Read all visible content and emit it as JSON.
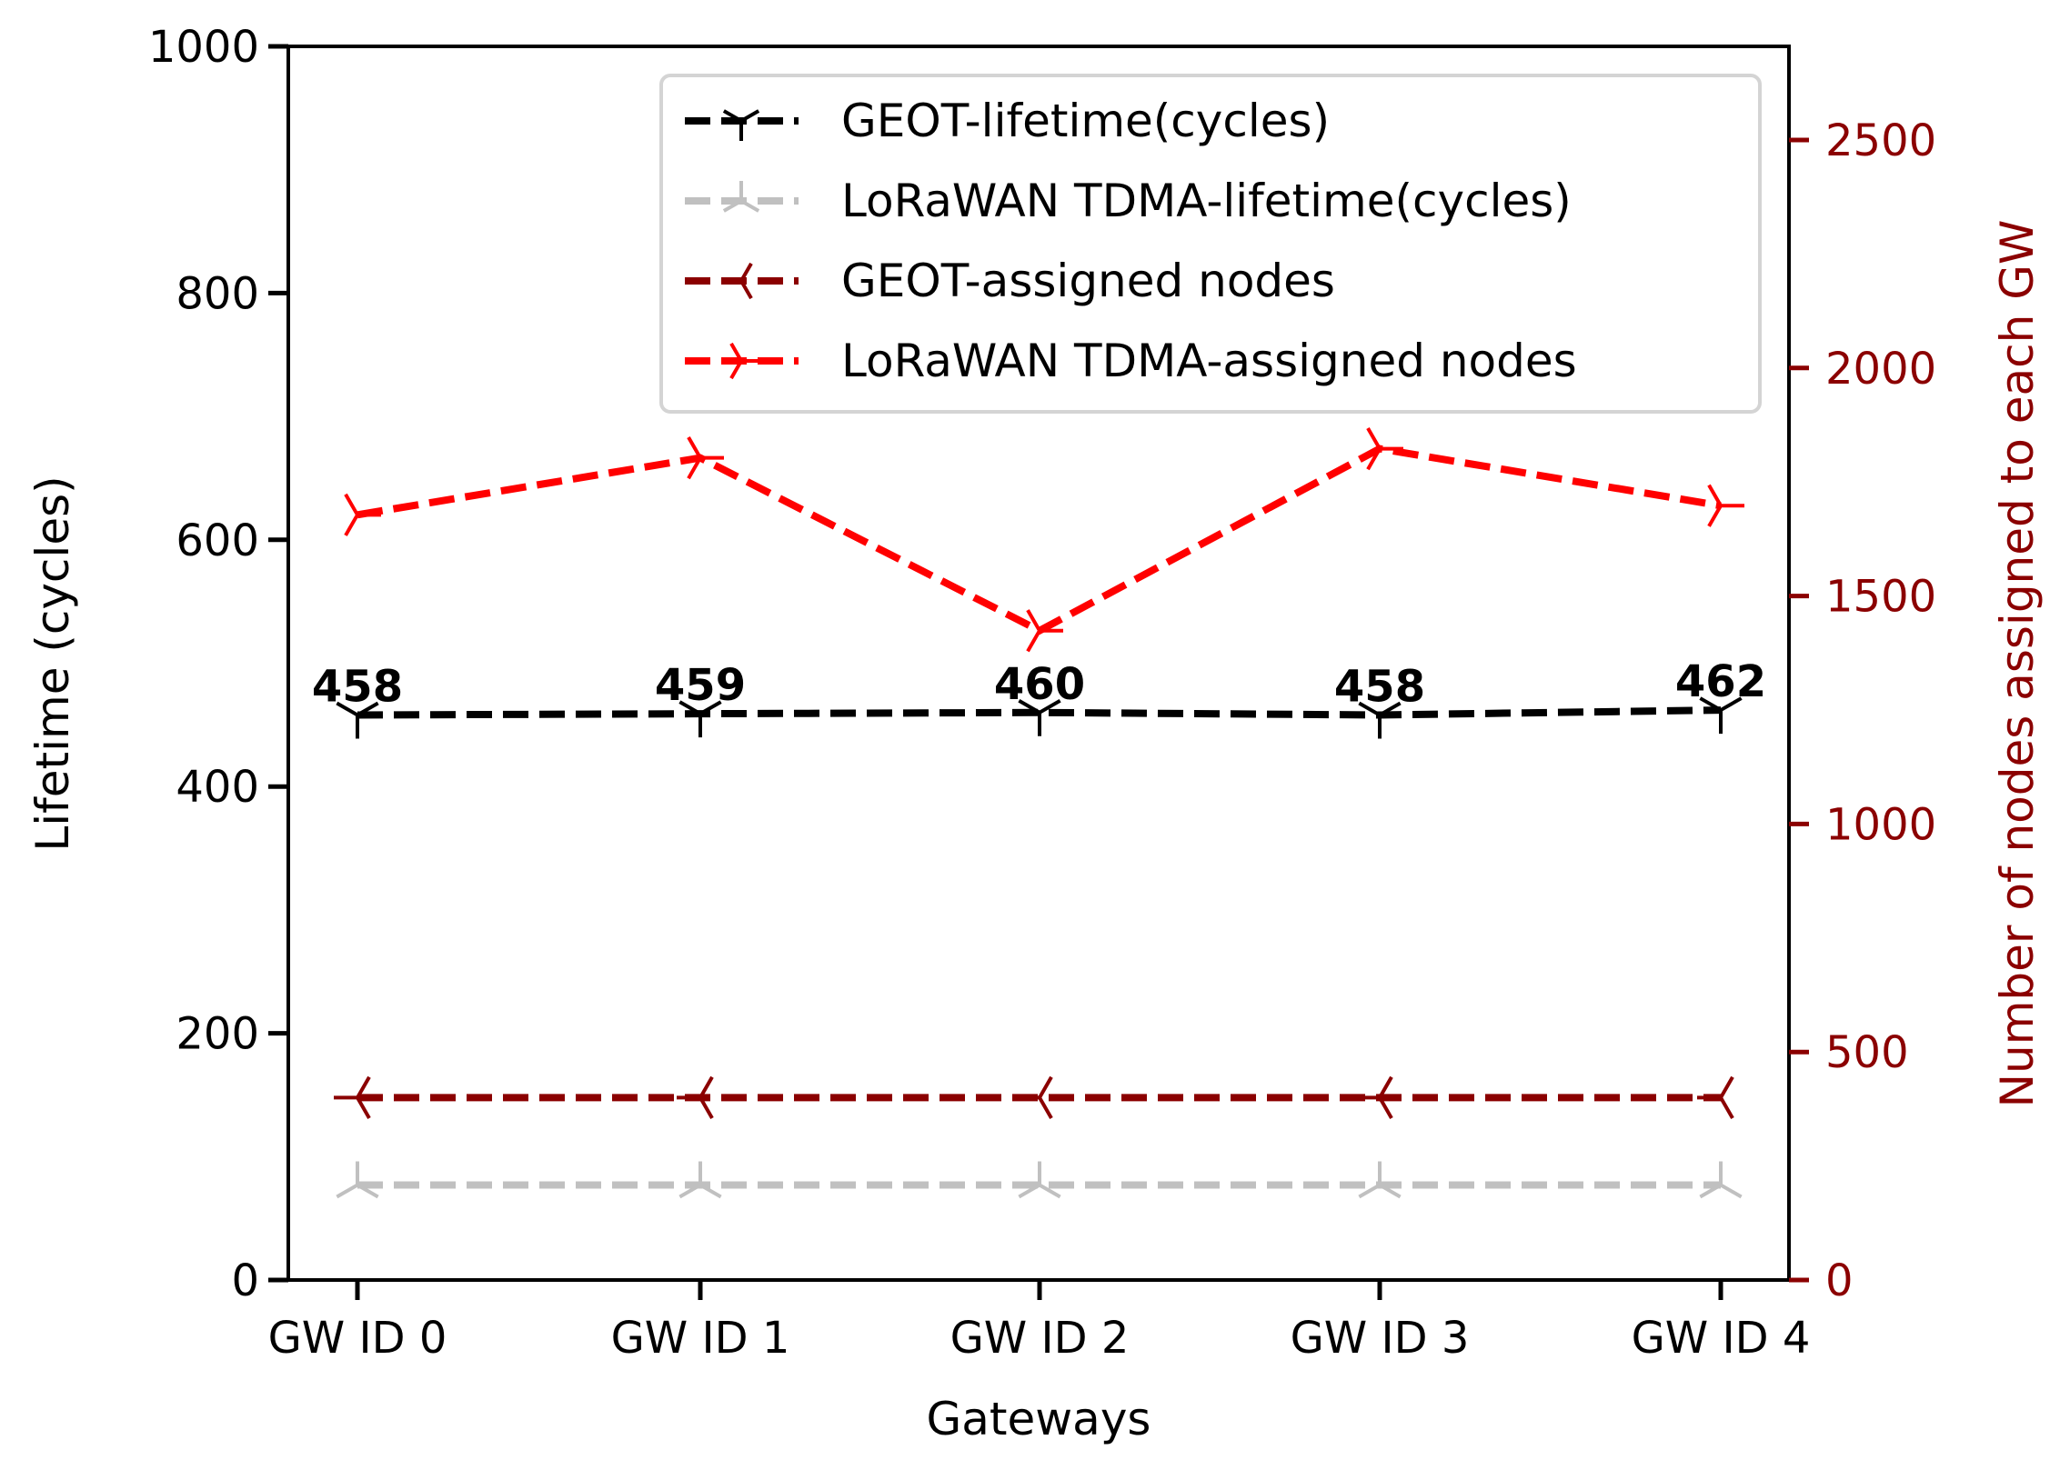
{
  "chart_data": {
    "type": "line",
    "categories": [
      "GW ID 0",
      "GW ID 1",
      "GW ID 2",
      "GW ID 3",
      "GW ID 4"
    ],
    "xlabel": "Gateways",
    "ylabel": "Lifetime (cycles)",
    "ylabel_right": "Number of nodes assigned to each GW",
    "ylim": [
      0,
      1000
    ],
    "ylim_right": [
      0,
      2700
    ],
    "yticks": [
      0,
      200,
      400,
      600,
      800,
      1000
    ],
    "yticks_right": [
      0,
      500,
      1000,
      1500,
      2000,
      2500
    ],
    "grid": false,
    "legend_position": "top-right",
    "series": [
      {
        "name": "GEOT-lifetime(cycles)",
        "axis": "left",
        "color": "#000000",
        "marker": "tri_down",
        "values": [
          458,
          459,
          460,
          458,
          462
        ],
        "labels": [
          "458",
          "459",
          "460",
          "458",
          "462"
        ]
      },
      {
        "name": "LoRaWAN TDMA-lifetime(cycles)",
        "axis": "left",
        "color": "#c0c0c0",
        "marker": "tri_up",
        "values": [
          77,
          77,
          77,
          77,
          77
        ]
      },
      {
        "name": "GEOT-assigned nodes",
        "axis": "right",
        "color": "#8b0000",
        "marker": "tri_left",
        "values": [
          400,
          400,
          400,
          400,
          400
        ]
      },
      {
        "name": "LoRaWAN TDMA-assigned nodes",
        "axis": "right",
        "color": "#ff0000",
        "marker": "tri_right",
        "values": [
          1678,
          1803,
          1424,
          1823,
          1698
        ]
      }
    ],
    "right_axis_color": "#8b0000"
  }
}
